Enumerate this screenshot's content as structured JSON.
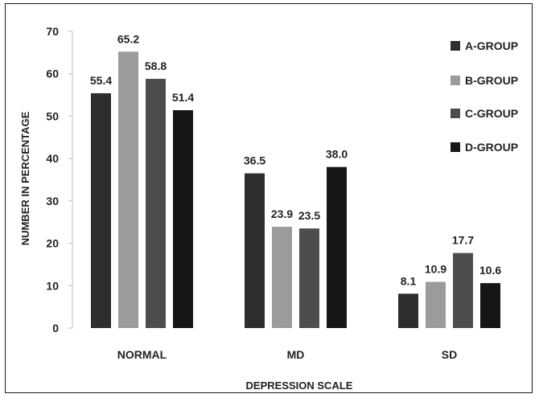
{
  "chart_data": {
    "type": "bar",
    "title": "",
    "xlabel": "DEPRESSION SCALE",
    "ylabel": "NUMBER IN PERCENTAGE",
    "ylim": [
      0,
      70
    ],
    "yticks": [
      0,
      10,
      20,
      30,
      40,
      50,
      60,
      70
    ],
    "categories": [
      "NORMAL",
      "MD",
      "SD"
    ],
    "series": [
      {
        "name": "A-GROUP",
        "color": "#2e2e2e",
        "values": [
          55.4,
          36.5,
          8.1
        ],
        "labels": [
          "55.4",
          "36.5",
          "8.1"
        ]
      },
      {
        "name": "B-GROUP",
        "color": "#9b9b9b",
        "values": [
          65.2,
          23.9,
          10.9
        ],
        "labels": [
          "65.2",
          "23.9",
          "10.9"
        ]
      },
      {
        "name": "C-GROUP",
        "color": "#4d4d4d",
        "values": [
          58.8,
          23.5,
          17.7
        ],
        "labels": [
          "58.8",
          "23.5",
          "17.7"
        ]
      },
      {
        "name": "D-GROUP",
        "color": "#161616",
        "values": [
          51.4,
          38.0,
          10.6
        ],
        "labels": [
          "51.4",
          "38.0",
          "10.6"
        ]
      }
    ],
    "legend": "right",
    "grid": false
  }
}
